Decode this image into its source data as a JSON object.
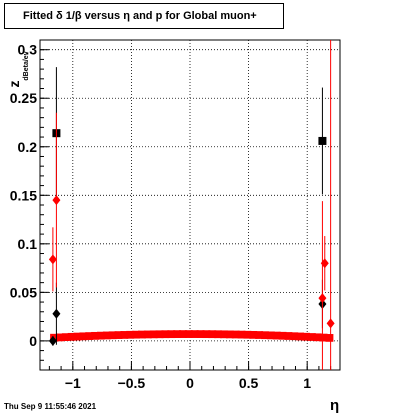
{
  "chart_data": {
    "type": "scatter",
    "title": "Fitted δ 1/β versus η and p for Global muon+",
    "xlabel": "η",
    "ylabel_main": "z",
    "ylabel_sub": "dBeta/ev",
    "xlim": [
      -1.28,
      1.28
    ],
    "ylim": [
      -0.03,
      0.31
    ],
    "grid": true,
    "x_ticks": [
      -1,
      -0.5,
      0,
      0.5,
      1
    ],
    "x_tick_labels": [
      "−1",
      "−0.5",
      "0",
      "0.5",
      "1"
    ],
    "y_ticks": [
      0,
      0.05,
      0.1,
      0.15,
      0.2,
      0.25,
      0.3
    ],
    "y_tick_labels": [
      "0",
      "0.05",
      "0.1",
      "0.15",
      "0.2",
      "0.25",
      "0.3"
    ],
    "colors": {
      "black_series": "#000000",
      "red_series": "#ff0000"
    },
    "series": [
      {
        "marker": "square",
        "color": "#000000",
        "points": [
          {
            "x": -1.14,
            "y": 0.214,
            "err": 0.068
          },
          {
            "x": 1.13,
            "y": 0.206,
            "err": 0.055
          }
        ]
      },
      {
        "marker": "diamond",
        "color": "#000000",
        "points": [
          {
            "x": -1.14,
            "y": 0.028,
            "err": 0.032
          },
          {
            "x": 1.13,
            "y": 0.038,
            "err": 0.025
          },
          {
            "x": -1.17,
            "y": 0.0,
            "err": 0.005
          }
        ]
      },
      {
        "marker": "diamond",
        "color": "#ff0000",
        "points": [
          {
            "x": -1.14,
            "y": 0.145,
            "err": 0.09
          },
          {
            "x": -1.17,
            "y": 0.084,
            "err": 0.033
          },
          {
            "x": 1.13,
            "y": 0.044,
            "err": 0.1
          },
          {
            "x": 1.15,
            "y": 0.08,
            "err": 0.028
          },
          {
            "x": 1.2,
            "y": 0.018,
            "err": 0.3
          }
        ]
      }
    ],
    "band": {
      "color": "#ff0000",
      "x_start": -1.16,
      "x_end": 1.2,
      "x_step": 0.05,
      "y_center_mid": 0.007,
      "y_center_edge": 0.003,
      "half_height": 0.004
    }
  },
  "footer": "Thu Sep  9 11:55:46 2021"
}
